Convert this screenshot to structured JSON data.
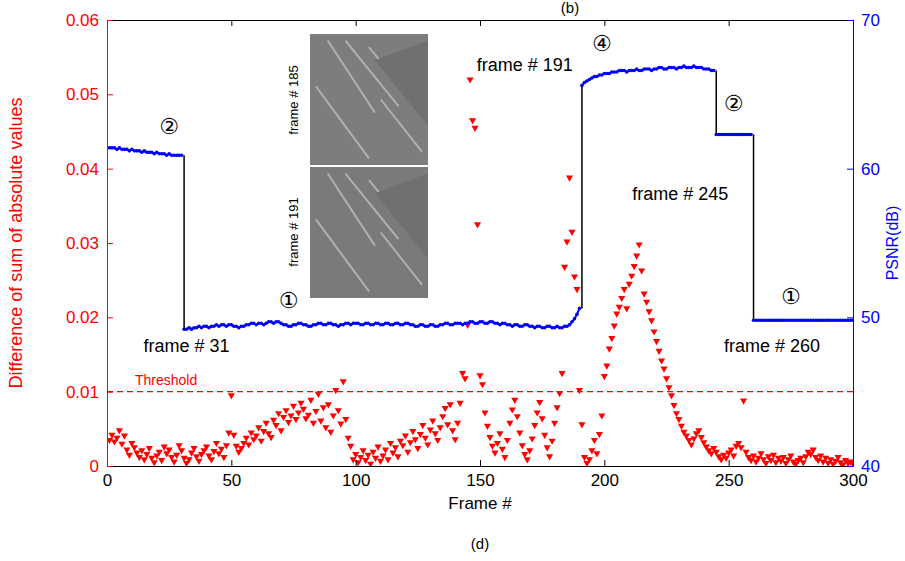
{
  "chart_data": {
    "type": "combo",
    "title": "(b)",
    "caption": "(d)",
    "xlabel": "Frame #",
    "ylabel": "Difference of sum of absolute values",
    "y2label": "PSNR(dB)",
    "xlim": [
      0,
      300
    ],
    "xticks": [
      0,
      50,
      100,
      150,
      200,
      250,
      300
    ],
    "ylim": [
      0,
      0.06
    ],
    "yticks": [
      0,
      0.01,
      0.02,
      0.03,
      0.04,
      0.05,
      0.06
    ],
    "y2lim": [
      40,
      70
    ],
    "y2ticks": [
      40,
      50,
      60,
      70
    ],
    "grid": false,
    "x": [
      1,
      2,
      3,
      4,
      5,
      6,
      7,
      8,
      9,
      10,
      11,
      12,
      13,
      14,
      15,
      16,
      17,
      18,
      19,
      20,
      21,
      22,
      23,
      24,
      25,
      26,
      27,
      28,
      29,
      30,
      31,
      32,
      33,
      34,
      35,
      36,
      37,
      38,
      39,
      40,
      41,
      42,
      43,
      44,
      45,
      46,
      47,
      48,
      49,
      50,
      51,
      52,
      53,
      54,
      55,
      56,
      57,
      58,
      59,
      60,
      61,
      62,
      63,
      64,
      65,
      66,
      67,
      68,
      69,
      70,
      71,
      72,
      73,
      74,
      75,
      76,
      77,
      78,
      79,
      80,
      81,
      82,
      83,
      84,
      85,
      86,
      87,
      88,
      89,
      90,
      91,
      92,
      93,
      94,
      95,
      96,
      97,
      98,
      99,
      100,
      101,
      102,
      103,
      104,
      105,
      106,
      107,
      108,
      109,
      110,
      111,
      112,
      113,
      114,
      115,
      116,
      117,
      118,
      119,
      120,
      121,
      122,
      123,
      124,
      125,
      126,
      127,
      128,
      129,
      130,
      131,
      132,
      133,
      134,
      135,
      136,
      137,
      138,
      139,
      140,
      141,
      142,
      143,
      144,
      145,
      146,
      147,
      148,
      149,
      150,
      151,
      152,
      153,
      154,
      155,
      156,
      157,
      158,
      159,
      160,
      161,
      162,
      163,
      164,
      165,
      166,
      167,
      168,
      169,
      170,
      171,
      172,
      173,
      174,
      175,
      176,
      177,
      178,
      179,
      180,
      181,
      182,
      183,
      184,
      185,
      186,
      187,
      188,
      189,
      190,
      191,
      192,
      193,
      194,
      195,
      196,
      197,
      198,
      199,
      200,
      201,
      202,
      203,
      204,
      205,
      206,
      207,
      208,
      209,
      210,
      211,
      212,
      213,
      214,
      215,
      216,
      217,
      218,
      219,
      220,
      221,
      222,
      223,
      224,
      225,
      226,
      227,
      228,
      229,
      230,
      231,
      232,
      233,
      234,
      235,
      236,
      237,
      238,
      239,
      240,
      241,
      242,
      243,
      244,
      245,
      246,
      247,
      248,
      249,
      250,
      251,
      252,
      253,
      254,
      255,
      256,
      257,
      258,
      259,
      260,
      261,
      262,
      263,
      264,
      265,
      266,
      267,
      268,
      269,
      270,
      271,
      272,
      273,
      274,
      275,
      276,
      277,
      278,
      279,
      280,
      281,
      282,
      283,
      284,
      285,
      286,
      287,
      288,
      289,
      290,
      291,
      292,
      293,
      294,
      295,
      296,
      297,
      298,
      299,
      300
    ],
    "series": [
      {
        "type": "scatter",
        "color": "#ff0000",
        "marker": "triangle",
        "values": [
          0.0035,
          0.0042,
          0.0033,
          0.0038,
          0.0048,
          0.003,
          0.0041,
          0.0022,
          0.0015,
          0.0031,
          0.0025,
          0.0018,
          0.0012,
          0.0021,
          0.0009,
          0.0016,
          0.0024,
          0.0011,
          0.0005,
          0.0014,
          0.0019,
          0.0008,
          0.0026,
          0.0017,
          0.0022,
          0.0012,
          0.0006,
          0.0015,
          0.0028,
          0.0021,
          0.0011,
          0.0004,
          0.0009,
          0.0018,
          0.0024,
          0.0013,
          0.0007,
          0.0016,
          0.0021,
          0.0026,
          0.0014,
          0.0009,
          0.002,
          0.0031,
          0.0017,
          0.0023,
          0.0012,
          0.0028,
          0.0045,
          0.0095,
          0.0042,
          0.0027,
          0.0019,
          0.0024,
          0.0031,
          0.0038,
          0.0029,
          0.0045,
          0.0036,
          0.0041,
          0.0052,
          0.0034,
          0.0047,
          0.0058,
          0.0044,
          0.0039,
          0.0062,
          0.0055,
          0.0071,
          0.0048,
          0.0066,
          0.0075,
          0.0059,
          0.0068,
          0.0081,
          0.0063,
          0.0072,
          0.0085,
          0.0077,
          0.0064,
          0.0069,
          0.0089,
          0.0058,
          0.0074,
          0.0097,
          0.0061,
          0.0079,
          0.0052,
          0.0083,
          0.0046,
          0.0068,
          0.0102,
          0.0075,
          0.0057,
          0.0114,
          0.0063,
          0.0038,
          0.0027,
          0.0009,
          0.0016,
          0.0005,
          0.0012,
          0.0021,
          0.0008,
          0.0015,
          0.0003,
          0.0019,
          0.0011,
          0.0026,
          0.0007,
          0.0014,
          0.0022,
          0.0009,
          0.0031,
          0.0018,
          0.0025,
          0.0013,
          0.0034,
          0.0028,
          0.0041,
          0.0019,
          0.0032,
          0.0047,
          0.0036,
          0.0024,
          0.0043,
          0.0055,
          0.0038,
          0.0029,
          0.0049,
          0.0061,
          0.0044,
          0.0035,
          0.0052,
          0.0067,
          0.0078,
          0.0056,
          0.0083,
          0.0048,
          0.0036,
          0.0058,
          0.0085,
          0.0125,
          0.0118,
          0.019,
          0.052,
          0.0465,
          0.0455,
          0.0325,
          0.0122,
          0.011,
          0.0072,
          0.0054,
          0.0039,
          0.0027,
          0.0018,
          0.0031,
          0.0044,
          0.0023,
          0.0012,
          0.0035,
          0.0058,
          0.0076,
          0.0089,
          0.0067,
          0.0045,
          0.0028,
          0.0016,
          0.0009,
          0.0021,
          0.0037,
          0.0055,
          0.0072,
          0.0086,
          0.0064,
          0.0042,
          0.0025,
          0.0013,
          0.0034,
          0.0058,
          0.0079,
          0.0098,
          0.0125,
          0.0268,
          0.0302,
          0.0388,
          0.0315,
          0.0255,
          0.0238,
          0.0102,
          0.0056,
          0.0012,
          0.0004,
          0.0009,
          0.0021,
          0.0035,
          0.0017,
          0.0043,
          0.0068,
          0.0121,
          0.0135,
          0.0158,
          0.0172,
          0.0189,
          0.0205,
          0.0214,
          0.0226,
          0.0238,
          0.0212,
          0.0245,
          0.0256,
          0.0269,
          0.0283,
          0.0298,
          0.0263,
          0.0232,
          0.0221,
          0.0208,
          0.0196,
          0.0181,
          0.0168,
          0.0155,
          0.0142,
          0.0131,
          0.0118,
          0.0106,
          0.0095,
          0.0082,
          0.0071,
          0.0063,
          0.0054,
          0.0046,
          0.0041,
          0.0035,
          0.0029,
          0.0037,
          0.0044,
          0.0048,
          0.0039,
          0.0032,
          0.0026,
          0.0021,
          0.0017,
          0.0024,
          0.0019,
          0.0013,
          0.0009,
          0.0015,
          0.0011,
          0.0018,
          0.0022,
          0.0014,
          0.0027,
          0.0031,
          0.0025,
          0.0088,
          0.0019,
          0.0012,
          0.0008,
          0.0014,
          0.0006,
          0.0011,
          0.0017,
          0.0009,
          0.0004,
          0.0013,
          0.0008,
          0.0015,
          0.0005,
          0.0011,
          0.0007,
          0.0012,
          0.0004,
          0.0009,
          0.0014,
          0.0006,
          0.0003,
          0.0008,
          0.0011,
          0.0005,
          0.0013,
          0.0019,
          0.0016,
          0.0022,
          0.0012,
          0.0008,
          0.0014,
          0.0006,
          0.0011,
          0.0004,
          0.0009,
          0.0003,
          0.0007,
          0.0012,
          0.0005,
          0.0002,
          0.0008,
          0.0004,
          0.0006,
          0.0003
        ]
      },
      {
        "type": "line",
        "axis": "y2",
        "color": "#0000ff",
        "marker": "point",
        "line_style": "solid",
        "values": [
          61.4,
          61.4,
          61.4,
          61.3,
          61.4,
          61.3,
          61.3,
          61.3,
          61.2,
          61.3,
          61.2,
          61.2,
          61.2,
          61.1,
          61.2,
          61.1,
          61.1,
          61.1,
          61.0,
          61.1,
          61.0,
          61.0,
          61.0,
          60.9,
          61.0,
          60.9,
          60.9,
          60.9,
          60.9,
          60.9,
          49.2,
          49.2,
          49.3,
          49.2,
          49.3,
          49.3,
          49.4,
          49.3,
          49.4,
          49.4,
          49.3,
          49.4,
          49.4,
          49.5,
          49.4,
          49.5,
          49.5,
          49.4,
          49.5,
          49.5,
          49.4,
          49.4,
          49.3,
          49.4,
          49.4,
          49.5,
          49.5,
          49.6,
          49.6,
          49.5,
          49.6,
          49.6,
          49.5,
          49.6,
          49.7,
          49.7,
          49.6,
          49.7,
          49.7,
          49.6,
          49.5,
          49.5,
          49.4,
          49.4,
          49.5,
          49.5,
          49.6,
          49.6,
          49.5,
          49.5,
          49.4,
          49.4,
          49.5,
          49.5,
          49.6,
          49.6,
          49.5,
          49.5,
          49.6,
          49.6,
          49.5,
          49.5,
          49.4,
          49.5,
          49.5,
          49.6,
          49.6,
          49.5,
          49.6,
          49.6,
          49.6,
          49.5,
          49.5,
          49.6,
          49.6,
          49.5,
          49.5,
          49.6,
          49.6,
          49.5,
          49.5,
          49.6,
          49.6,
          49.5,
          49.5,
          49.6,
          49.6,
          49.5,
          49.5,
          49.6,
          49.6,
          49.5,
          49.5,
          49.4,
          49.4,
          49.5,
          49.5,
          49.4,
          49.4,
          49.5,
          49.5,
          49.4,
          49.4,
          49.5,
          49.5,
          49.6,
          49.6,
          49.5,
          49.5,
          49.6,
          49.6,
          49.6,
          49.5,
          49.6,
          49.6,
          49.7,
          49.7,
          49.6,
          49.6,
          49.7,
          49.7,
          49.6,
          49.6,
          49.7,
          49.7,
          49.6,
          49.6,
          49.5,
          49.6,
          49.6,
          49.5,
          49.5,
          49.4,
          49.5,
          49.5,
          49.4,
          49.4,
          49.5,
          49.5,
          49.4,
          49.4,
          49.3,
          49.4,
          49.4,
          49.3,
          49.3,
          49.4,
          49.4,
          49.3,
          49.3,
          49.4,
          49.3,
          49.3,
          49.4,
          49.4,
          49.5,
          49.7,
          49.9,
          50.2,
          50.6,
          65.6,
          65.8,
          65.9,
          66.0,
          66.1,
          66.2,
          66.2,
          66.3,
          66.3,
          66.4,
          66.4,
          66.4,
          66.5,
          66.5,
          66.5,
          66.6,
          66.6,
          66.6,
          66.5,
          66.6,
          66.6,
          66.6,
          66.7,
          66.6,
          66.6,
          66.7,
          66.7,
          66.7,
          66.6,
          66.7,
          66.7,
          66.8,
          66.8,
          66.7,
          66.7,
          66.8,
          66.8,
          66.8,
          66.7,
          66.8,
          66.8,
          66.9,
          66.8,
          66.8,
          66.8,
          66.9,
          66.8,
          66.8,
          66.8,
          66.7,
          66.7,
          66.7,
          66.6,
          66.6,
          62.3,
          62.3,
          62.3,
          62.3,
          62.3,
          62.3,
          62.3,
          62.3,
          62.3,
          62.3,
          62.3,
          62.3,
          62.3,
          62.3,
          62.3,
          49.8,
          49.8,
          49.8,
          49.8,
          49.8,
          49.8,
          49.8,
          49.8,
          49.8,
          49.8,
          49.8,
          49.8,
          49.8,
          49.8,
          49.8,
          49.8,
          49.8,
          49.8,
          49.8,
          49.8,
          49.8,
          49.8,
          49.8,
          49.8,
          49.8,
          49.8,
          49.8,
          49.8,
          49.8,
          49.8,
          49.8,
          49.8,
          49.8,
          49.8,
          49.8,
          49.8,
          49.8,
          49.8,
          49.8,
          49.8,
          49.8
        ]
      }
    ],
    "threshold": {
      "value": 0.01,
      "label": "Threshold",
      "line_style": "dashed"
    },
    "frame_markers": [
      {
        "x": 31,
        "text": "frame # 31",
        "label_x": 32,
        "label_y": 47.7
      },
      {
        "x": 191,
        "text": "frame # 191",
        "label_x": 168,
        "label_y": 66.6
      },
      {
        "x": 245,
        "text": "frame # 245",
        "label_x": 230.5,
        "label_y": 57.9
      },
      {
        "x": 260,
        "text": "frame # 260",
        "label_x": 267.4,
        "label_y": 47.7
      }
    ],
    "annotations": [
      {
        "text": "②",
        "x": 25,
        "y": 62.7
      },
      {
        "text": "①",
        "x": 73,
        "y": 51.0
      },
      {
        "text": "④",
        "x": 199,
        "y": 68.3
      },
      {
        "text": "②",
        "x": 252,
        "y": 64.3
      },
      {
        "text": "①",
        "x": 275,
        "y": 51.3
      }
    ],
    "inset_labels": [
      "frame # 185",
      "frame # 191"
    ]
  }
}
